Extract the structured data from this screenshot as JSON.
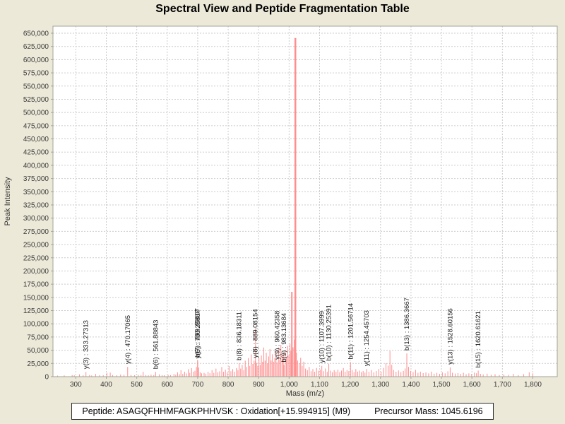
{
  "title": "Spectral View and Peptide Fragmentation Table",
  "footer": {
    "peptide": "Peptide: ASAGQFHHMFAGKPHHVSK : Oxidation[+15.994915] (M9)",
    "precursor": "Precursor Mass: 1045.6196"
  },
  "chart_data": {
    "type": "bar",
    "subtype": "mass-spectrum-stick-plot",
    "title": "Spectral View and Peptide Fragmentation Table",
    "xlabel": "Mass (m/z)",
    "ylabel": "Peak Intensity",
    "xlim": [
      225,
      1880
    ],
    "ylim": [
      0,
      663000
    ],
    "grid": "dashed",
    "legend": "none",
    "x_ticks": [
      300,
      400,
      500,
      600,
      700,
      800,
      900,
      1000,
      1100,
      1200,
      1300,
      1400,
      1500,
      1600,
      1700,
      1800
    ],
    "y_axis": {
      "min": 0,
      "max_tick": 650000,
      "step": 25000
    },
    "colors": {
      "background": "#ece9d8",
      "plot_background": "#ffffff",
      "grid": "#cbcbcb",
      "plot_border": "#a3a39c",
      "peak": "#ff8e8e",
      "tick_text": "#3a3a3a",
      "label_text": "#1b1b1b"
    },
    "annotated_peaks": [
      {
        "ion": "y(3)",
        "label": "y(3) : 333.27313",
        "mz": 333.27313,
        "intensity": 9000
      },
      {
        "ion": "y(4)",
        "label": "y(4) : 470.17065",
        "mz": 470.17065,
        "intensity": 18500
      },
      {
        "ion": "b(6)",
        "label": "b(6) : 561.88843",
        "mz": 561.88843,
        "intensity": 9000
      },
      {
        "ion": "b(7)",
        "label": "b(7) : 699.45607",
        "mz": 699.45607,
        "intensity": 31000
      },
      {
        "ion": "y(6)",
        "label": "y(6) : 700.25807",
        "mz": 700.25807,
        "intensity": 29000
      },
      {
        "ion": "b(8)",
        "label": "b(8) : 836.18311",
        "mz": 836.18311,
        "intensity": 25500
      },
      {
        "ion": "y(8)",
        "label": "y(8) : 889.08154",
        "mz": 889.08154,
        "intensity": 30000
      },
      {
        "ion": "y(9)",
        "label": "y(9) : 960.42358",
        "mz": 960.42358,
        "intensity": 27000
      },
      {
        "ion": "b(9)",
        "label": "b(9) : 983.13684",
        "mz": 983.13684,
        "intensity": 22000
      },
      {
        "ion": "y(10)",
        "label": "y(10) : 1107.3999",
        "mz": 1107.3999,
        "intensity": 20500
      },
      {
        "ion": "b(10)",
        "label": "b(10) : 1130.25391",
        "mz": 1130.25391,
        "intensity": 24500
      },
      {
        "ion": "b(11)",
        "label": "b(11) : 1201.56714",
        "mz": 1201.56714,
        "intensity": 27500
      },
      {
        "ion": "y(11)",
        "label": "y(11) : 1254.45703",
        "mz": 1254.45703,
        "intensity": 14500
      },
      {
        "ion": "b(13)",
        "label": "b(13) : 1386.3667",
        "mz": 1386.3667,
        "intensity": 44000
      },
      {
        "ion": "y(13)",
        "label": "y(13) : 1528.60156",
        "mz": 1528.60156,
        "intensity": 17500
      },
      {
        "ion": "b(15)",
        "label": "b(15) : 1620.61621",
        "mz": 1620.61621,
        "intensity": 11500
      }
    ],
    "peaks": [
      [
        240,
        2000
      ],
      [
        262,
        2400
      ],
      [
        288,
        3000
      ],
      [
        295,
        2500
      ],
      [
        312,
        4200
      ],
      [
        324,
        2600
      ],
      [
        345,
        3200
      ],
      [
        352,
        2300
      ],
      [
        365,
        5200
      ],
      [
        378,
        2900
      ],
      [
        390,
        2600
      ],
      [
        402,
        7200
      ],
      [
        413,
        7600
      ],
      [
        421,
        3100
      ],
      [
        434,
        2600
      ],
      [
        447,
        4100
      ],
      [
        458,
        3600
      ],
      [
        481,
        3100
      ],
      [
        493,
        2700
      ],
      [
        505,
        3300
      ],
      [
        514,
        2900
      ],
      [
        521,
        9200
      ],
      [
        530,
        3100
      ],
      [
        538,
        2600
      ],
      [
        547,
        3900
      ],
      [
        556,
        3100
      ],
      [
        574,
        4300
      ],
      [
        583,
        3100
      ],
      [
        590,
        2700
      ],
      [
        603,
        3600
      ],
      [
        611,
        2900
      ],
      [
        622,
        5100
      ],
      [
        628,
        3600
      ],
      [
        634,
        8200
      ],
      [
        640,
        4600
      ],
      [
        645,
        12200
      ],
      [
        651,
        5200
      ],
      [
        657,
        9300
      ],
      [
        663,
        6200
      ],
      [
        669,
        14200
      ],
      [
        674,
        7200
      ],
      [
        680,
        16200
      ],
      [
        686,
        9400
      ],
      [
        691,
        11200
      ],
      [
        696,
        18200
      ],
      [
        703,
        17200
      ],
      [
        708,
        8300
      ],
      [
        713,
        6300
      ],
      [
        721,
        7200
      ],
      [
        727,
        5600
      ],
      [
        734,
        9200
      ],
      [
        740,
        6600
      ],
      [
        747,
        12200
      ],
      [
        753,
        7100
      ],
      [
        760,
        15200
      ],
      [
        766,
        8200
      ],
      [
        772,
        10200
      ],
      [
        779,
        18200
      ],
      [
        785,
        9200
      ],
      [
        791,
        13200
      ],
      [
        797,
        8300
      ],
      [
        803,
        20200
      ],
      [
        809,
        10300
      ],
      [
        815,
        14200
      ],
      [
        821,
        9300
      ],
      [
        827,
        16200
      ],
      [
        832,
        12300
      ],
      [
        841,
        15300
      ],
      [
        846,
        22200
      ],
      [
        851,
        12400
      ],
      [
        856,
        30200
      ],
      [
        861,
        18300
      ],
      [
        866,
        35200
      ],
      [
        871,
        20300
      ],
      [
        876,
        42200
      ],
      [
        881,
        24200
      ],
      [
        885,
        30300
      ],
      [
        889.8,
        92000
      ],
      [
        893,
        26200
      ],
      [
        897,
        20400
      ],
      [
        901,
        35300
      ],
      [
        905,
        22300
      ],
      [
        909,
        40200
      ],
      [
        913,
        28200
      ],
      [
        917,
        55200
      ],
      [
        921,
        30400
      ],
      [
        925,
        45200
      ],
      [
        929,
        25300
      ],
      [
        933,
        38200
      ],
      [
        937,
        52200
      ],
      [
        941,
        30500
      ],
      [
        945,
        42300
      ],
      [
        949,
        28300
      ],
      [
        953,
        35400
      ],
      [
        957,
        48200
      ],
      [
        965,
        55300
      ],
      [
        969,
        32200
      ],
      [
        973,
        60200
      ],
      [
        977,
        38300
      ],
      [
        981,
        45300
      ],
      [
        987,
        50200
      ],
      [
        991,
        35500
      ],
      [
        995,
        58200
      ],
      [
        999,
        40300
      ],
      [
        1003,
        62200
      ],
      [
        1006,
        48300
      ],
      [
        1009,
        160500
      ],
      [
        1013,
        55400
      ],
      [
        1017,
        70200
      ],
      [
        1020.5,
        641000
      ],
      [
        1024,
        45400
      ],
      [
        1028,
        30600
      ],
      [
        1033,
        25400
      ],
      [
        1038,
        35600
      ],
      [
        1043,
        20500
      ],
      [
        1048,
        28400
      ],
      [
        1054,
        15300
      ],
      [
        1060,
        12300
      ],
      [
        1066,
        18400
      ],
      [
        1072,
        10300
      ],
      [
        1078,
        14300
      ],
      [
        1084,
        9300
      ],
      [
        1090,
        16300
      ],
      [
        1096,
        11300
      ],
      [
        1102,
        13300
      ],
      [
        1113,
        10400
      ],
      [
        1119,
        15400
      ],
      [
        1125,
        9400
      ],
      [
        1136,
        11400
      ],
      [
        1142,
        8300
      ],
      [
        1148,
        12400
      ],
      [
        1154,
        9200
      ],
      [
        1160,
        13400
      ],
      [
        1166,
        8400
      ],
      [
        1172,
        11500
      ],
      [
        1178,
        16400
      ],
      [
        1184,
        9500
      ],
      [
        1190,
        12500
      ],
      [
        1196,
        10500
      ],
      [
        1207,
        12600
      ],
      [
        1213,
        8500
      ],
      [
        1219,
        14400
      ],
      [
        1225,
        9600
      ],
      [
        1231,
        11600
      ],
      [
        1237,
        8600
      ],
      [
        1243,
        10600
      ],
      [
        1249,
        7600
      ],
      [
        1262,
        9100
      ],
      [
        1270,
        12700
      ],
      [
        1278,
        8200
      ],
      [
        1286,
        10700
      ],
      [
        1294,
        14500
      ],
      [
        1302,
        9200
      ],
      [
        1310,
        16500
      ],
      [
        1318,
        25500
      ],
      [
        1325,
        20600
      ],
      [
        1331,
        48500
      ],
      [
        1337,
        22400
      ],
      [
        1343,
        12800
      ],
      [
        1351,
        9300
      ],
      [
        1359,
        11700
      ],
      [
        1367,
        8700
      ],
      [
        1375,
        10800
      ],
      [
        1381,
        15500
      ],
      [
        1392,
        18500
      ],
      [
        1399,
        10900
      ],
      [
        1407,
        8800
      ],
      [
        1415,
        12900
      ],
      [
        1423,
        7300
      ],
      [
        1431,
        9400
      ],
      [
        1440,
        6700
      ],
      [
        1449,
        8100
      ],
      [
        1458,
        6200
      ],
      [
        1467,
        9500
      ],
      [
        1476,
        5700
      ],
      [
        1485,
        7200
      ],
      [
        1494,
        5200
      ],
      [
        1503,
        8200
      ],
      [
        1512,
        6300
      ],
      [
        1521,
        10200
      ],
      [
        1536,
        7300
      ],
      [
        1545,
        5800
      ],
      [
        1554,
        6800
      ],
      [
        1563,
        5300
      ],
      [
        1572,
        7400
      ],
      [
        1581,
        4700
      ],
      [
        1590,
        6200
      ],
      [
        1599,
        5200
      ],
      [
        1608,
        7700
      ],
      [
        1615,
        6400
      ],
      [
        1628,
        5300
      ],
      [
        1637,
        4200
      ],
      [
        1650,
        5700
      ],
      [
        1663,
        3700
      ],
      [
        1676,
        4700
      ],
      [
        1690,
        3200
      ],
      [
        1705,
        4300
      ],
      [
        1720,
        3200
      ],
      [
        1736,
        5200
      ],
      [
        1752,
        3200
      ],
      [
        1770,
        4700
      ],
      [
        1788,
        8200
      ],
      [
        1800,
        6200
      ]
    ]
  }
}
